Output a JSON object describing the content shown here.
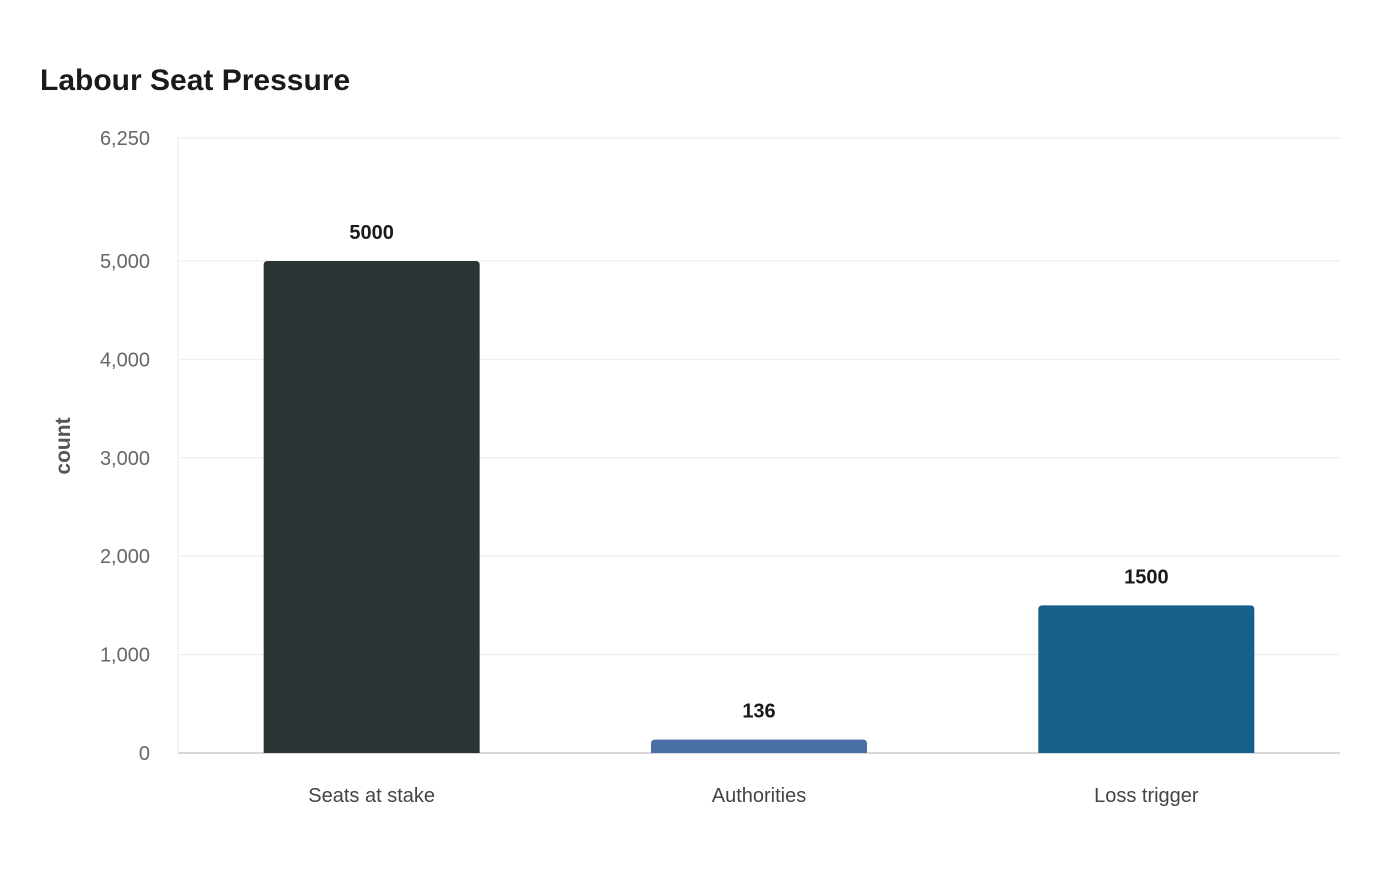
{
  "chart_data": {
    "type": "bar",
    "title": "Labour Seat Pressure",
    "xlabel": "",
    "ylabel": "count",
    "categories": [
      "Seats at stake",
      "Authorities",
      "Loss trigger"
    ],
    "values": [
      5000,
      136,
      1500
    ],
    "data_labels": [
      "5000",
      "136",
      "1500"
    ],
    "colors": [
      "#2d3436",
      "#4a6fa5",
      "#17608a"
    ],
    "ylim": [
      0,
      6250
    ],
    "yticks": [
      0,
      1000,
      2000,
      3000,
      4000,
      5000,
      6250
    ],
    "ytick_labels": [
      "0",
      "1,000",
      "2,000",
      "3,000",
      "4,000",
      "5,000",
      "6,250"
    ],
    "grid": true,
    "legend": "none"
  }
}
